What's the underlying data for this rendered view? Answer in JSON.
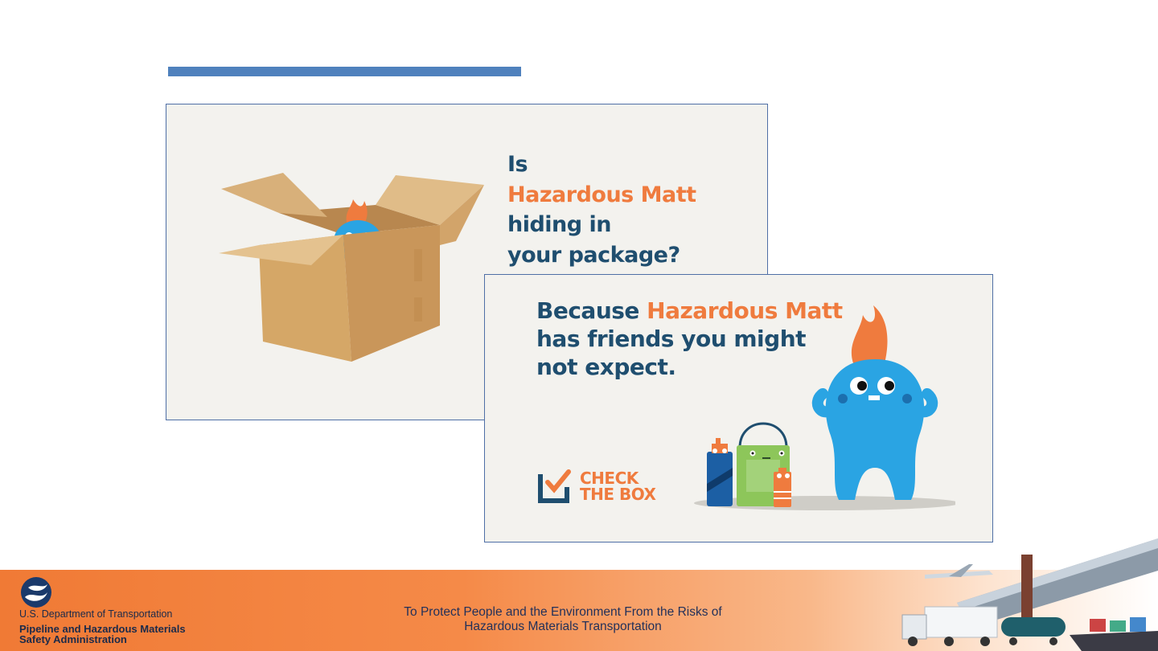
{
  "card1": {
    "headline": [
      "Is",
      "Hazardous Matt",
      "hiding in",
      "your package?"
    ]
  },
  "card2": {
    "headline_start": "Because ",
    "headline_name": "Hazardous Matt",
    "headline_line2": "has friends you might",
    "headline_line3": "not expect.",
    "badge": [
      "CHECK",
      "THE BOX"
    ]
  },
  "footer": {
    "org": "U.S. Department of Transportation",
    "agency": [
      "Pipeline and Hazardous Materials",
      "Safety Administration"
    ],
    "mission": [
      "To Protect People and the Environment From the Risks of",
      "Hazardous Materials Transportation"
    ]
  },
  "colors": {
    "accent_blue": "#4f81bd",
    "navy_text": "#1f4e6f",
    "orange_text": "#ef7b3e",
    "footer_orange": "#f07a35"
  },
  "icons": [
    "dot-logo-icon",
    "cardboard-box-icon",
    "hazardous-matt-icon",
    "check-box-icon",
    "spray-can-icon",
    "paint-can-icon",
    "battery-icon",
    "transport-montage-icon"
  ]
}
